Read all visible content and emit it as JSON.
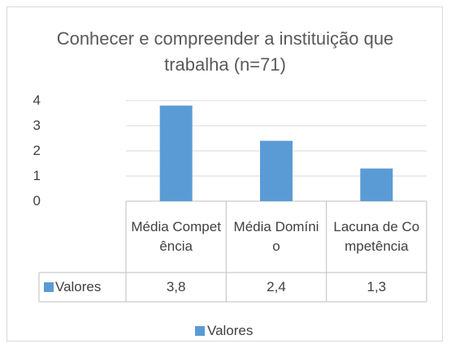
{
  "chart_data": {
    "type": "bar",
    "title": "Conhecer e compreender a instituição que trabalha (n=71)",
    "categories": [
      "Média Competência",
      "Média Domínio",
      "Lacuna de Competência"
    ],
    "series": [
      {
        "name": "Valores",
        "color": "#5b9bd5",
        "values": [
          3.8,
          2.4,
          1.3
        ],
        "value_labels": [
          "3,8",
          "2,4",
          "1,3"
        ]
      }
    ],
    "ylim": [
      0,
      4
    ],
    "yticks": [
      0,
      1,
      2,
      3,
      4
    ],
    "grid": true,
    "legend": "bottom",
    "data_table": true
  }
}
